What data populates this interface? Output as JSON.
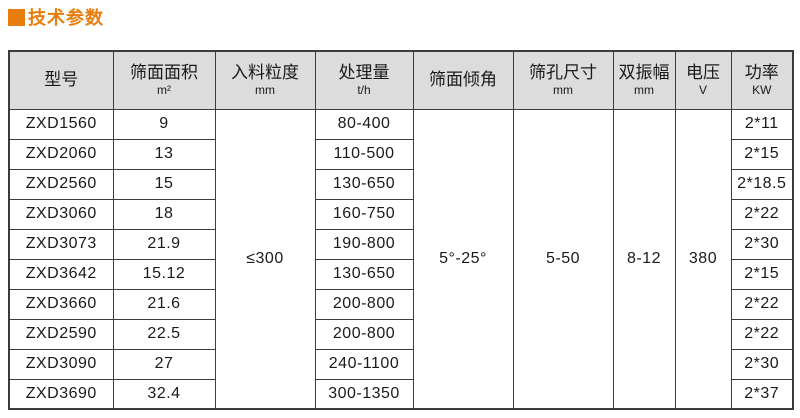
{
  "title": "技术参数",
  "colors": {
    "accent": "#e87c0d",
    "header_bg": "#dcdcdc",
    "border": "#3c3c3c",
    "text": "#1a1a1a"
  },
  "table": {
    "columns": [
      {
        "label": "型号",
        "unit": ""
      },
      {
        "label": "筛面面积",
        "unit": "m²"
      },
      {
        "label": "入料粒度",
        "unit": "mm"
      },
      {
        "label": "处理量",
        "unit": "t/h"
      },
      {
        "label": "筛面倾角",
        "unit": ""
      },
      {
        "label": "筛孔尺寸",
        "unit": "mm"
      },
      {
        "label": "双振幅",
        "unit": "mm"
      },
      {
        "label": "电压",
        "unit": "V"
      },
      {
        "label": "功率",
        "unit": "KW"
      }
    ],
    "merged": {
      "feed_size": "≤300",
      "incline": "5°-25°",
      "hole_size": "5-50",
      "amplitude": "8-12",
      "voltage": "380"
    },
    "rows": [
      {
        "model": "ZXD1560",
        "area": "9",
        "capacity": "80-400",
        "power": "2*11"
      },
      {
        "model": "ZXD2060",
        "area": "13",
        "capacity": "110-500",
        "power": "2*15"
      },
      {
        "model": "ZXD2560",
        "area": "15",
        "capacity": "130-650",
        "power": "2*18.5"
      },
      {
        "model": "ZXD3060",
        "area": "18",
        "capacity": "160-750",
        "power": "2*22"
      },
      {
        "model": "ZXD3073",
        "area": "21.9",
        "capacity": "190-800",
        "power": "2*30"
      },
      {
        "model": "ZXD3642",
        "area": "15.12",
        "capacity": "130-650",
        "power": "2*15"
      },
      {
        "model": "ZXD3660",
        "area": "21.6",
        "capacity": "200-800",
        "power": "2*22"
      },
      {
        "model": "ZXD2590",
        "area": "22.5",
        "capacity": "200-800",
        "power": "2*22"
      },
      {
        "model": "ZXD3090",
        "area": "27",
        "capacity": "240-1100",
        "power": "2*30"
      },
      {
        "model": "ZXD3690",
        "area": "32.4",
        "capacity": "300-1350",
        "power": "2*37"
      }
    ]
  }
}
